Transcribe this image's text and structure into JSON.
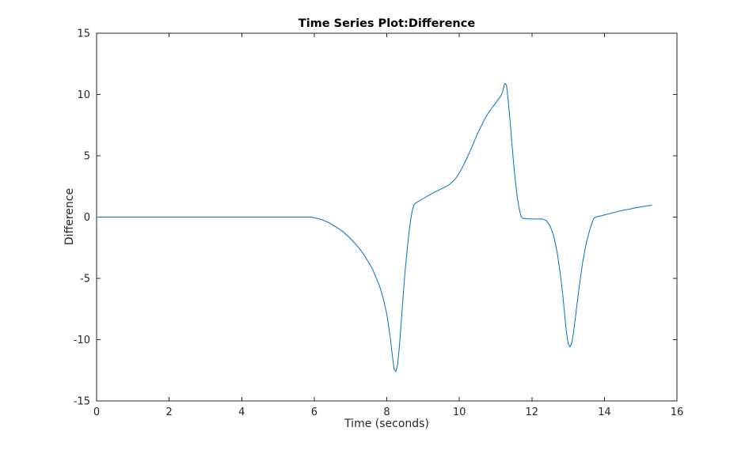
{
  "chart_data": {
    "type": "line",
    "title": "Time Series Plot:Difference",
    "xlabel": "Time (seconds)",
    "ylabel": "Difference",
    "xlim": [
      0,
      16
    ],
    "ylim": [
      -15,
      15
    ],
    "xticks": [
      0,
      2,
      4,
      6,
      8,
      10,
      12,
      14,
      16
    ],
    "yticks": [
      -15,
      -10,
      -5,
      0,
      5,
      10,
      15
    ],
    "grid": false,
    "legend_position": "none",
    "line_color": "#0072BD",
    "axis_color": "#262626",
    "background": "#ffffff",
    "series": [
      {
        "name": "Difference",
        "points": [
          [
            0,
            0
          ],
          [
            0.5,
            0
          ],
          [
            1,
            0
          ],
          [
            1.5,
            0
          ],
          [
            2,
            0
          ],
          [
            2.5,
            0
          ],
          [
            3,
            0
          ],
          [
            3.5,
            0
          ],
          [
            4,
            0
          ],
          [
            4.5,
            0
          ],
          [
            5,
            0
          ],
          [
            5.5,
            0
          ],
          [
            5.9,
            0
          ],
          [
            6.0,
            -0.05
          ],
          [
            6.2,
            -0.2
          ],
          [
            6.4,
            -0.45
          ],
          [
            6.6,
            -0.8
          ],
          [
            6.8,
            -1.2
          ],
          [
            7.0,
            -1.75
          ],
          [
            7.2,
            -2.4
          ],
          [
            7.4,
            -3.2
          ],
          [
            7.6,
            -4.2
          ],
          [
            7.8,
            -5.6
          ],
          [
            7.9,
            -6.6
          ],
          [
            8.0,
            -7.9
          ],
          [
            8.1,
            -9.9
          ],
          [
            8.15,
            -11.2
          ],
          [
            8.2,
            -12.4
          ],
          [
            8.25,
            -12.6
          ],
          [
            8.3,
            -12.0
          ],
          [
            8.35,
            -10.5
          ],
          [
            8.4,
            -8.5
          ],
          [
            8.45,
            -6.5
          ],
          [
            8.5,
            -4.6
          ],
          [
            8.55,
            -3.0
          ],
          [
            8.6,
            -1.6
          ],
          [
            8.65,
            -0.4
          ],
          [
            8.7,
            0.5
          ],
          [
            8.75,
            1.0
          ],
          [
            8.8,
            1.15
          ],
          [
            9.0,
            1.5
          ],
          [
            9.2,
            1.85
          ],
          [
            9.4,
            2.15
          ],
          [
            9.6,
            2.45
          ],
          [
            9.7,
            2.6
          ],
          [
            9.8,
            2.85
          ],
          [
            9.9,
            3.15
          ],
          [
            10.0,
            3.6
          ],
          [
            10.1,
            4.15
          ],
          [
            10.2,
            4.75
          ],
          [
            10.3,
            5.4
          ],
          [
            10.4,
            6.1
          ],
          [
            10.5,
            6.8
          ],
          [
            10.6,
            7.4
          ],
          [
            10.7,
            8.0
          ],
          [
            10.8,
            8.5
          ],
          [
            10.9,
            8.9
          ],
          [
            11.0,
            9.3
          ],
          [
            11.1,
            9.7
          ],
          [
            11.15,
            9.9
          ],
          [
            11.2,
            10.3
          ],
          [
            11.25,
            10.9
          ],
          [
            11.3,
            10.8
          ],
          [
            11.35,
            9.5
          ],
          [
            11.4,
            7.8
          ],
          [
            11.45,
            6.0
          ],
          [
            11.5,
            4.3
          ],
          [
            11.55,
            2.8
          ],
          [
            11.6,
            1.6
          ],
          [
            11.65,
            0.7
          ],
          [
            11.7,
            0.1
          ],
          [
            11.75,
            -0.1
          ],
          [
            11.9,
            -0.15
          ],
          [
            12.1,
            -0.15
          ],
          [
            12.3,
            -0.15
          ],
          [
            12.4,
            -0.3
          ],
          [
            12.5,
            -0.7
          ],
          [
            12.6,
            -1.5
          ],
          [
            12.7,
            -2.9
          ],
          [
            12.8,
            -5.0
          ],
          [
            12.85,
            -6.3
          ],
          [
            12.9,
            -7.8
          ],
          [
            12.95,
            -9.3
          ],
          [
            13.0,
            -10.3
          ],
          [
            13.05,
            -10.6
          ],
          [
            13.1,
            -10.3
          ],
          [
            13.15,
            -9.4
          ],
          [
            13.2,
            -8.2
          ],
          [
            13.3,
            -5.8
          ],
          [
            13.4,
            -3.7
          ],
          [
            13.5,
            -2.1
          ],
          [
            13.6,
            -1.0
          ],
          [
            13.65,
            -0.55
          ],
          [
            13.7,
            -0.15
          ],
          [
            13.75,
            0.0
          ],
          [
            13.9,
            0.1
          ],
          [
            14.1,
            0.25
          ],
          [
            14.3,
            0.4
          ],
          [
            14.5,
            0.55
          ],
          [
            14.7,
            0.65
          ],
          [
            14.9,
            0.78
          ],
          [
            15.1,
            0.88
          ],
          [
            15.3,
            0.97
          ]
        ]
      }
    ]
  }
}
